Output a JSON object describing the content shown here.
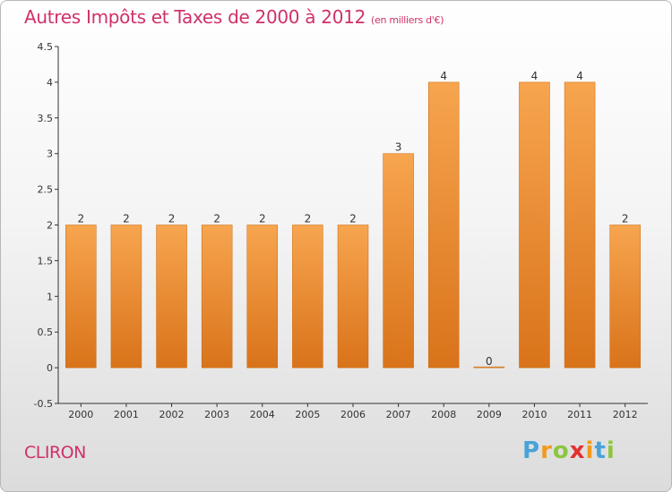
{
  "title": "Autres Impôts et Taxes de 2000 à 2012",
  "unit": "(en milliers d'€)",
  "commune": "CLIRON",
  "logo_text": "Proxiti",
  "colors": {
    "title": "#d0306a",
    "bar_top": "#f7a54f",
    "bar_bottom": "#d9731a",
    "axis": "#333333"
  },
  "chart_data": {
    "type": "bar",
    "title": "Autres Impôts et Taxes de 2000 à 2012",
    "subtitle": "(en milliers d'€)",
    "xlabel": "",
    "ylabel": "",
    "categories": [
      "2000",
      "2001",
      "2002",
      "2003",
      "2004",
      "2005",
      "2006",
      "2007",
      "2008",
      "2009",
      "2010",
      "2011",
      "2012"
    ],
    "values": [
      2,
      2,
      2,
      2,
      2,
      2,
      2,
      3,
      4,
      0,
      4,
      4,
      2
    ],
    "data_labels": [
      "2",
      "2",
      "2",
      "2",
      "2",
      "2",
      "2",
      "3",
      "4",
      "0",
      "4",
      "4",
      "2"
    ],
    "ylim": [
      -0.5,
      4.5
    ],
    "yticks": [
      "-0.5",
      "0",
      "0.5",
      "1",
      "1.5",
      "2",
      "2.5",
      "3",
      "3.5",
      "4",
      "4.5"
    ],
    "grid": false,
    "legend": "none"
  }
}
